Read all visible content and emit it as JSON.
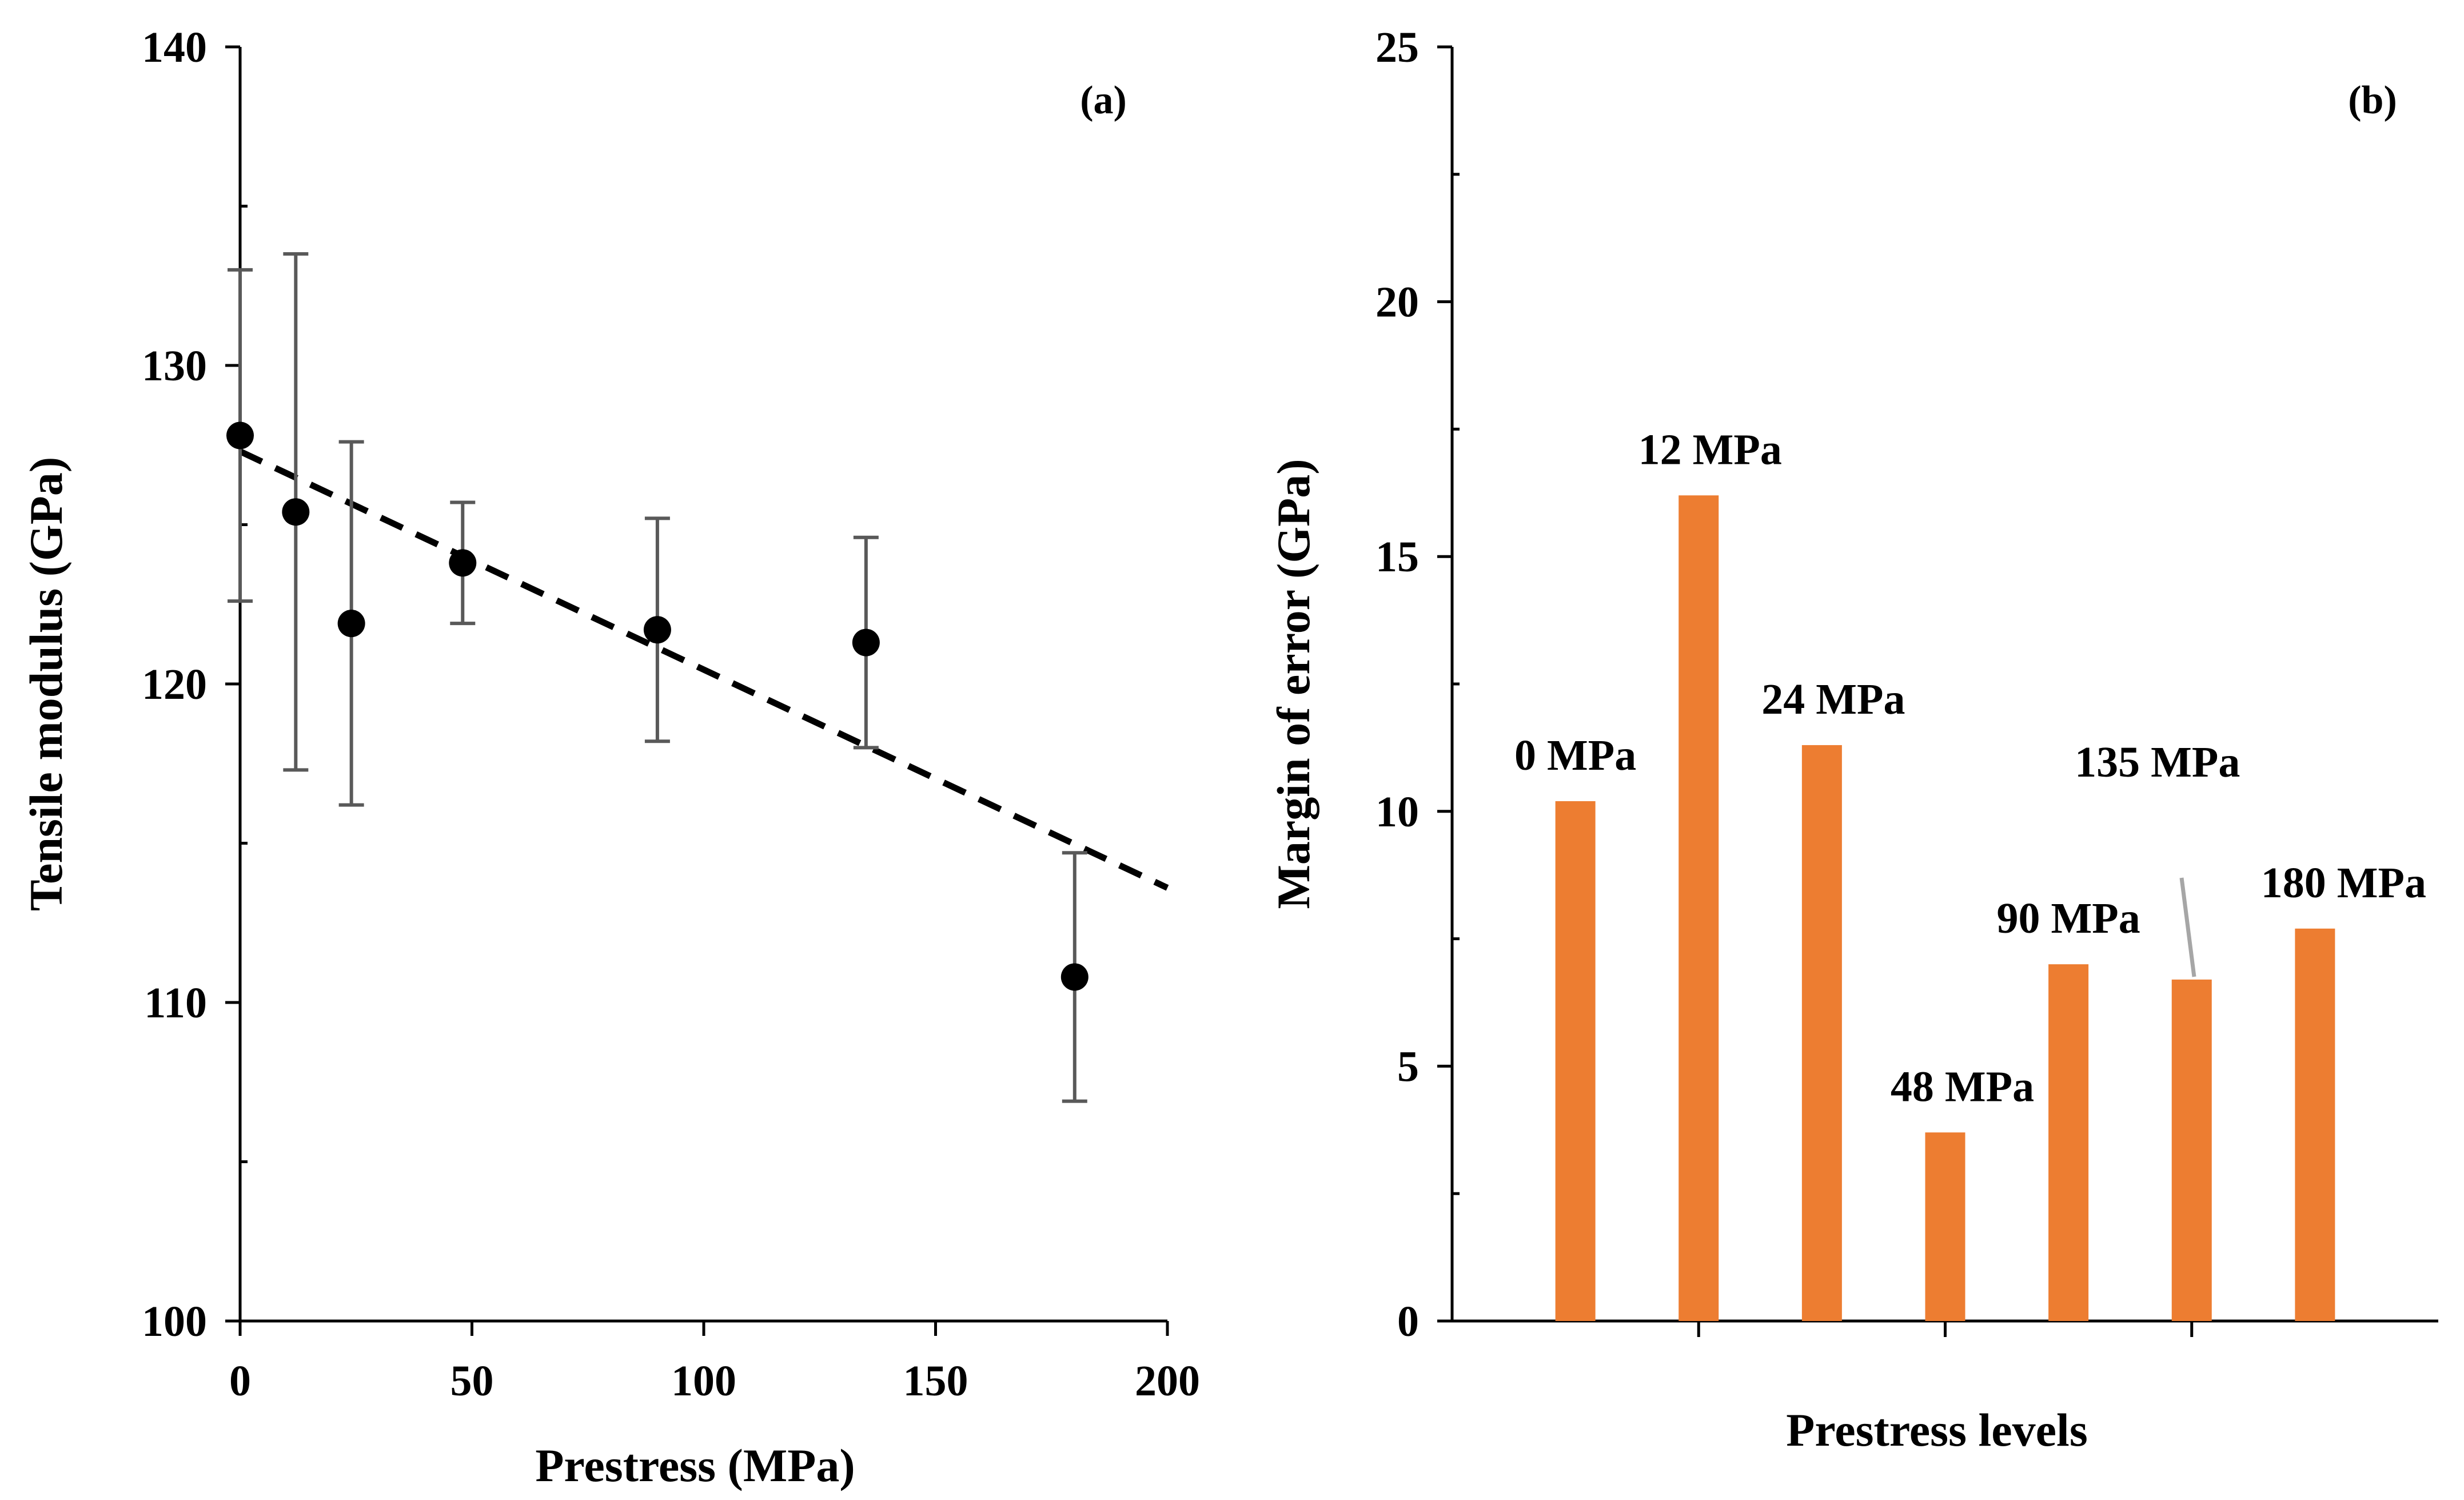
{
  "chart_data": [
    {
      "type": "scatter",
      "panel_label": "(a)",
      "xlabel": "Prestress (MPa)",
      "ylabel": "Tensile modulus (GPa)",
      "xlim": [
        0,
        200
      ],
      "ylim": [
        100,
        140
      ],
      "xticks": [
        0,
        50,
        100,
        150,
        200
      ],
      "yticks": [
        100,
        110,
        120,
        130,
        140
      ],
      "grid": false,
      "points": [
        {
          "x": 0,
          "y": 127.8,
          "err": 5.2
        },
        {
          "x": 12,
          "y": 125.4,
          "err": 8.1
        },
        {
          "x": 24,
          "y": 121.9,
          "err": 5.7
        },
        {
          "x": 48,
          "y": 123.8,
          "err": 1.9
        },
        {
          "x": 90,
          "y": 121.7,
          "err": 3.5
        },
        {
          "x": 135,
          "y": 121.3,
          "err": 3.3
        },
        {
          "x": 180,
          "y": 110.8,
          "err": 3.9
        }
      ],
      "trendline": {
        "style": "dashed",
        "x": [
          0,
          200
        ],
        "y": [
          127.3,
          113.6
        ]
      }
    },
    {
      "type": "bar",
      "panel_label": "(b)",
      "xlabel": "Prestress levels",
      "ylabel": "Margin of error (GPa)",
      "ylim": [
        0,
        25
      ],
      "yticks": [
        0,
        5,
        10,
        15,
        20,
        25
      ],
      "grid": false,
      "bar_color": "#ED7D31",
      "categories": [
        "0 MPa",
        "12 MPa",
        "24 MPa",
        "48 MPa",
        "90 MPa",
        "135 MPa",
        "180 MPa"
      ],
      "values": [
        10.2,
        16.2,
        11.3,
        3.7,
        7.0,
        6.7,
        7.7
      ]
    }
  ]
}
